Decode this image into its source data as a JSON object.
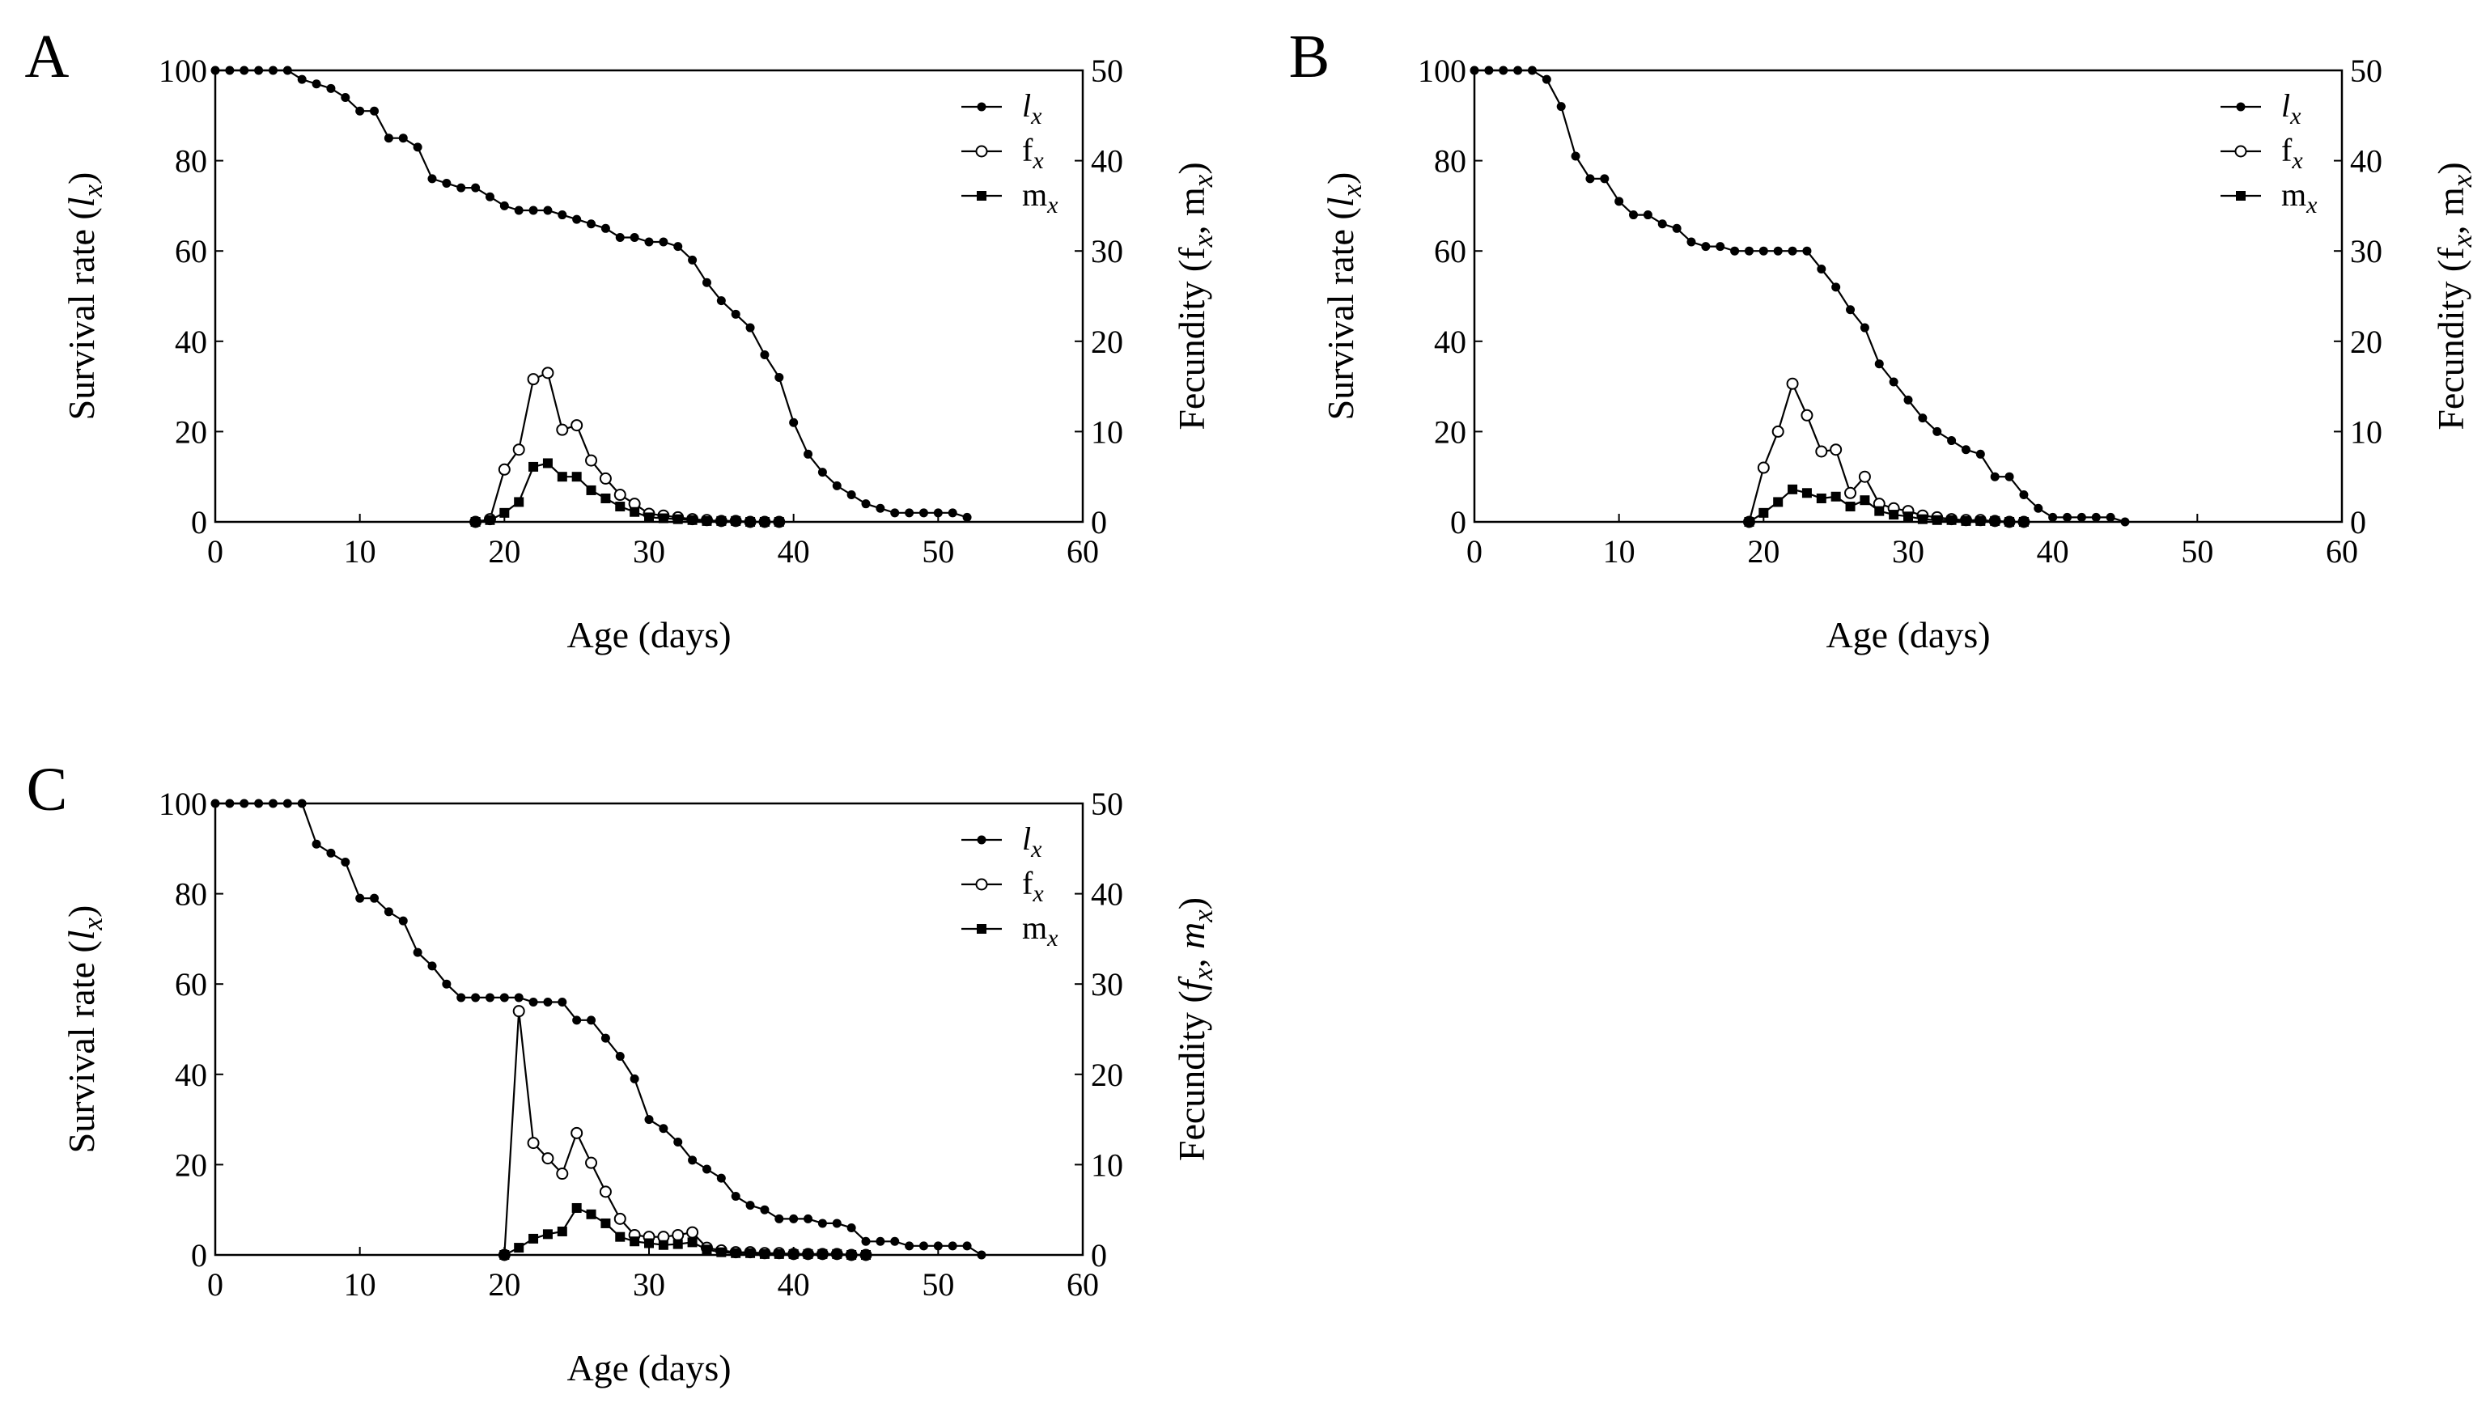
{
  "chart_data": [
    {
      "type": "line",
      "panel_label": "A",
      "xlabel": "Age (days)",
      "ylabel": "Survival rate (l_x)",
      "y2label": "Fecundity (f_x, m_x)",
      "xlim": [
        0,
        60
      ],
      "ylim": [
        0,
        100
      ],
      "y2lim": [
        0,
        50
      ],
      "xticks": [
        0,
        10,
        20,
        30,
        40,
        50,
        60
      ],
      "yticks": [
        0,
        20,
        40,
        60,
        80,
        100
      ],
      "y2ticks": [
        0,
        10,
        20,
        30,
        40,
        50
      ],
      "legend_position": "top-right",
      "series": [
        {
          "key": "lx",
          "name": "l",
          "sub": "x",
          "axis": "left",
          "marker": "filled-circle",
          "x": [
            0,
            1,
            2,
            3,
            4,
            5,
            6,
            7,
            8,
            9,
            10,
            11,
            12,
            13,
            14,
            15,
            16,
            17,
            18,
            19,
            20,
            21,
            22,
            23,
            24,
            25,
            26,
            27,
            28,
            29,
            30,
            31,
            32,
            33,
            34,
            35,
            36,
            37,
            38,
            39,
            40,
            41,
            42,
            43,
            44,
            45,
            46,
            47,
            48,
            49,
            50,
            51,
            52
          ],
          "values": [
            100,
            100,
            100,
            100,
            100,
            100,
            98,
            97,
            96,
            94,
            91,
            91,
            85,
            85,
            83,
            76,
            75,
            74,
            74,
            72,
            70,
            69,
            69,
            69,
            68,
            67,
            66,
            65,
            63,
            63,
            62,
            62,
            61,
            58,
            53,
            49,
            46,
            43,
            37,
            32,
            22,
            15,
            11,
            8,
            6,
            4,
            3,
            2,
            2,
            2,
            2,
            2,
            1
          ]
        },
        {
          "key": "fx",
          "name": "f",
          "sub": "x",
          "axis": "right",
          "marker": "open-circle",
          "x": [
            18,
            19,
            20,
            21,
            22,
            23,
            24,
            25,
            26,
            27,
            28,
            29,
            30,
            31,
            32,
            33,
            34,
            35,
            36,
            37,
            38,
            39
          ],
          "values": [
            0,
            0.3,
            5.8,
            8,
            15.8,
            16.5,
            10.2,
            10.7,
            6.8,
            4.8,
            3,
            2,
            0.9,
            0.7,
            0.5,
            0.3,
            0.2,
            0.1,
            0.1,
            0,
            0,
            0
          ]
        },
        {
          "key": "mx",
          "name": "m",
          "sub": "x",
          "axis": "right",
          "marker": "filled-square",
          "x": [
            18,
            19,
            20,
            21,
            22,
            23,
            24,
            25,
            26,
            27,
            28,
            29,
            30,
            31,
            32,
            33,
            34,
            35,
            36,
            37,
            38,
            39
          ],
          "values": [
            0,
            0.2,
            1,
            2.2,
            6.1,
            6.5,
            5,
            5,
            3.5,
            2.6,
            1.7,
            1.1,
            0.5,
            0.4,
            0.3,
            0.2,
            0.1,
            0.1,
            0.1,
            0,
            0,
            0
          ]
        }
      ]
    },
    {
      "type": "line",
      "panel_label": "B",
      "xlabel": "Age (days)",
      "ylabel": "Survival rate (l_x)",
      "y2label": "Fecundity (f_x, m_x)",
      "xlim": [
        0,
        60
      ],
      "ylim": [
        0,
        100
      ],
      "y2lim": [
        0,
        50
      ],
      "xticks": [
        0,
        10,
        20,
        30,
        40,
        50,
        60
      ],
      "yticks": [
        0,
        20,
        40,
        60,
        80,
        100
      ],
      "y2ticks": [
        0,
        10,
        20,
        30,
        40,
        50
      ],
      "legend_position": "top-right",
      "series": [
        {
          "key": "lx",
          "name": "l",
          "sub": "x",
          "axis": "left",
          "marker": "filled-circle",
          "x": [
            0,
            1,
            2,
            3,
            4,
            5,
            6,
            7,
            8,
            9,
            10,
            11,
            12,
            13,
            14,
            15,
            16,
            17,
            18,
            19,
            20,
            21,
            22,
            23,
            24,
            25,
            26,
            27,
            28,
            29,
            30,
            31,
            32,
            33,
            34,
            35,
            36,
            37,
            38,
            39,
            40,
            41,
            42,
            43,
            44,
            45
          ],
          "values": [
            100,
            100,
            100,
            100,
            100,
            98,
            92,
            81,
            76,
            76,
            71,
            68,
            68,
            66,
            65,
            62,
            61,
            61,
            60,
            60,
            60,
            60,
            60,
            60,
            56,
            52,
            47,
            43,
            35,
            31,
            27,
            23,
            20,
            18,
            16,
            15,
            10,
            10,
            6,
            3,
            1,
            1,
            1,
            1,
            1,
            0
          ]
        },
        {
          "key": "fx",
          "name": "f",
          "sub": "x",
          "axis": "right",
          "marker": "open-circle",
          "x": [
            19,
            20,
            21,
            22,
            23,
            24,
            25,
            26,
            27,
            28,
            29,
            30,
            31,
            32,
            33,
            34,
            35,
            36,
            37,
            38
          ],
          "values": [
            0,
            6,
            10,
            15.3,
            11.8,
            7.8,
            8,
            3.2,
            5,
            2,
            1.5,
            1.2,
            0.7,
            0.5,
            0.3,
            0.2,
            0.2,
            0.1,
            0,
            0
          ]
        },
        {
          "key": "mx",
          "name": "m",
          "sub": "x",
          "axis": "right",
          "marker": "filled-square",
          "x": [
            19,
            20,
            21,
            22,
            23,
            24,
            25,
            26,
            27,
            28,
            29,
            30,
            31,
            32,
            33,
            34,
            35,
            36,
            37,
            38
          ],
          "values": [
            0,
            1,
            2.2,
            3.6,
            3.2,
            2.6,
            2.8,
            1.7,
            2.4,
            1.2,
            0.8,
            0.6,
            0.3,
            0.2,
            0.2,
            0.1,
            0.1,
            0.1,
            0,
            0
          ]
        }
      ]
    },
    {
      "type": "line",
      "panel_label": "C",
      "xlabel": "Age (days)",
      "ylabel": "Survival rate (l_x)",
      "y2label": "Fecundity (f_x, m_x)",
      "xlim": [
        0,
        60
      ],
      "ylim": [
        0,
        100
      ],
      "y2lim": [
        0,
        50
      ],
      "xticks": [
        0,
        10,
        20,
        30,
        40,
        50,
        60
      ],
      "yticks": [
        0,
        20,
        40,
        60,
        80,
        100
      ],
      "y2ticks": [
        0,
        10,
        20,
        30,
        40,
        50
      ],
      "legend_position": "top-right",
      "series": [
        {
          "key": "lx",
          "name": "l",
          "sub": "x",
          "axis": "left",
          "marker": "filled-circle",
          "x": [
            0,
            1,
            2,
            3,
            4,
            5,
            6,
            7,
            8,
            9,
            10,
            11,
            12,
            13,
            14,
            15,
            16,
            17,
            18,
            19,
            20,
            21,
            22,
            23,
            24,
            25,
            26,
            27,
            28,
            29,
            30,
            31,
            32,
            33,
            34,
            35,
            36,
            37,
            38,
            39,
            40,
            41,
            42,
            43,
            44,
            45,
            46,
            47,
            48,
            49,
            50,
            51,
            52,
            53
          ],
          "values": [
            100,
            100,
            100,
            100,
            100,
            100,
            100,
            91,
            89,
            87,
            79,
            79,
            76,
            74,
            67,
            64,
            60,
            57,
            57,
            57,
            57,
            57,
            56,
            56,
            56,
            52,
            52,
            48,
            44,
            39,
            30,
            28,
            25,
            21,
            19,
            17,
            13,
            11,
            10,
            8,
            8,
            8,
            7,
            7,
            6,
            3,
            3,
            3,
            2,
            2,
            2,
            2,
            2,
            0
          ]
        },
        {
          "key": "fx",
          "name": "f",
          "sub": "x",
          "axis": "right",
          "marker": "open-circle",
          "x": [
            20,
            21,
            22,
            23,
            24,
            25,
            26,
            27,
            28,
            29,
            30,
            31,
            32,
            33,
            34,
            35,
            36,
            37,
            38,
            39,
            40,
            41,
            42,
            43,
            44,
            45
          ],
          "values": [
            0,
            27,
            12.4,
            10.7,
            9,
            13.5,
            10.2,
            7,
            4,
            2.2,
            2,
            2,
            2.2,
            2.5,
            0.8,
            0.5,
            0.3,
            0.3,
            0.2,
            0.2,
            0.1,
            0.1,
            0.1,
            0.1,
            0,
            0
          ]
        },
        {
          "key": "mx",
          "name": "m",
          "sub": "x",
          "axis": "right",
          "marker": "filled-square",
          "x": [
            20,
            21,
            22,
            23,
            24,
            25,
            26,
            27,
            28,
            29,
            30,
            31,
            32,
            33,
            34,
            35,
            36,
            37,
            38,
            39,
            40,
            41,
            42,
            43,
            44,
            45
          ],
          "values": [
            0,
            0.8,
            1.8,
            2.3,
            2.6,
            5.2,
            4.5,
            3.5,
            2,
            1.5,
            1.3,
            1.1,
            1.2,
            1.4,
            0.6,
            0.3,
            0.2,
            0.2,
            0.1,
            0.1,
            0.1,
            0.1,
            0.1,
            0.1,
            0,
            0
          ]
        }
      ]
    }
  ]
}
